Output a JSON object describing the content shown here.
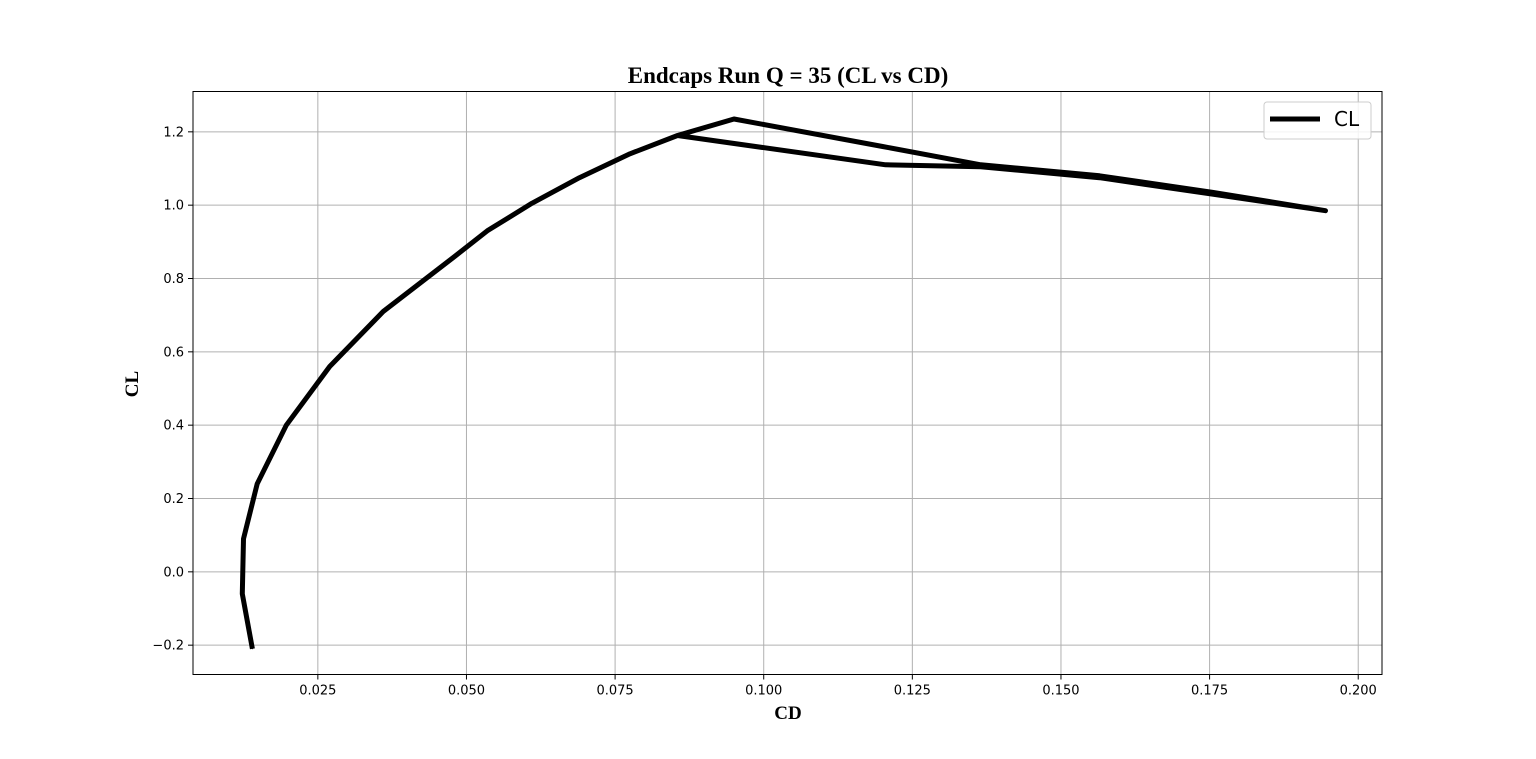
{
  "chart_data": {
    "type": "line",
    "title": "Endcaps Run Q = 35 (CL vs CD)",
    "xlabel": "CD",
    "ylabel": "CL",
    "xlim": [
      0.004,
      0.204
    ],
    "ylim": [
      -0.28,
      1.31
    ],
    "xticks": [
      0.025,
      0.05,
      0.075,
      0.1,
      0.125,
      0.15,
      0.175,
      0.2
    ],
    "xtick_labels": [
      "0.025",
      "0.050",
      "0.075",
      "0.100",
      "0.125",
      "0.150",
      "0.175",
      "0.200"
    ],
    "yticks": [
      -0.2,
      0.0,
      0.2,
      0.4,
      0.6,
      0.8,
      1.0,
      1.2
    ],
    "ytick_labels": [
      "−0.2",
      "0.0",
      "0.2",
      "0.4",
      "0.6",
      "0.8",
      "1.0",
      "1.2"
    ],
    "grid": true,
    "legend_position": "top-right",
    "series": [
      {
        "name": "CL",
        "color": "#000000",
        "x": [
          0.014,
          0.0123,
          0.0125,
          0.0148,
          0.0197,
          0.027,
          0.036,
          0.048,
          0.0535,
          0.061,
          0.069,
          0.0775,
          0.0855,
          0.095,
          0.12,
          0.1365,
          0.1565,
          0.1755,
          0.1945,
          0.1755,
          0.1565,
          0.1365,
          0.1205,
          0.0855
        ],
        "y": [
          -0.21,
          -0.06,
          0.09,
          0.24,
          0.4,
          0.56,
          0.71,
          0.86,
          0.93,
          1.005,
          1.075,
          1.14,
          1.19,
          1.235,
          1.16,
          1.11,
          1.08,
          1.035,
          0.985,
          1.03,
          1.075,
          1.105,
          1.11,
          1.19
        ]
      }
    ]
  }
}
